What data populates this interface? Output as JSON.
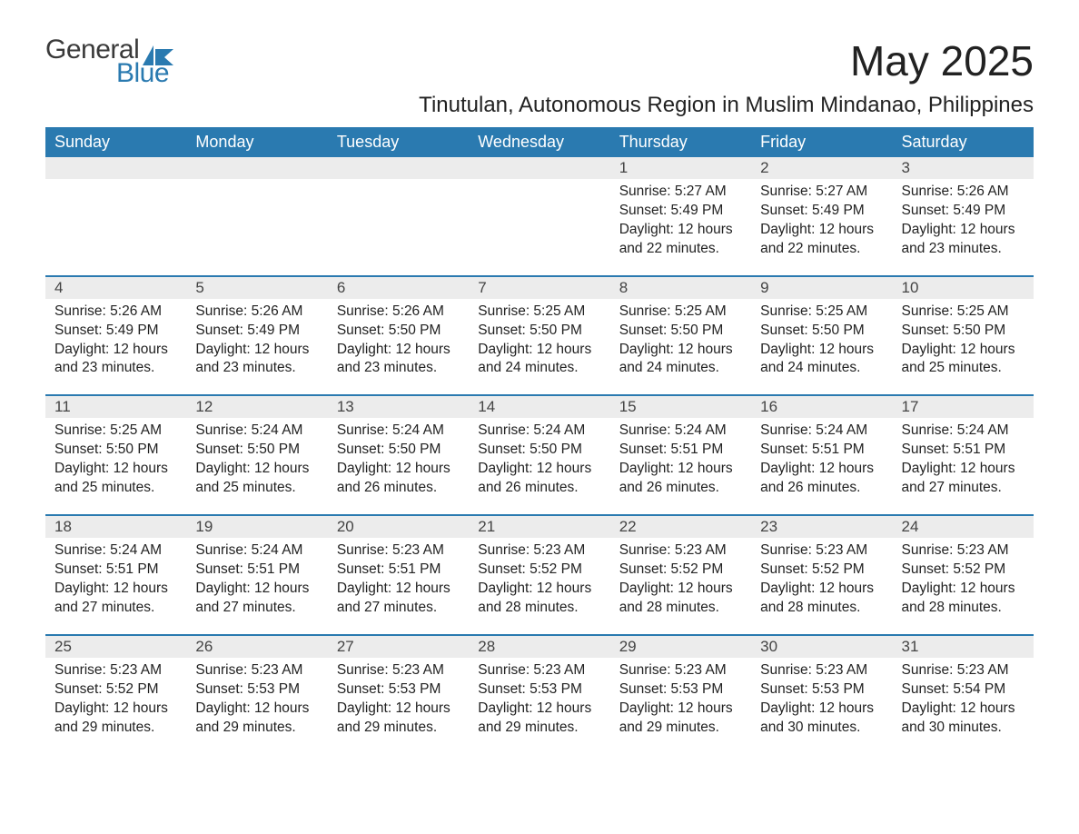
{
  "brand": {
    "general": "General",
    "blue": "Blue",
    "icon_color": "#2a7ab0"
  },
  "title": "May 2025",
  "subtitle": "Tinutulan, Autonomous Region in Muslim Mindanao, Philippines",
  "header_bg": "#2a7ab0",
  "header_fg": "#ffffff",
  "daynum_bg": "#ececec",
  "rule_color": "#2a7ab0",
  "text_color": "#222222",
  "days_of_week": [
    "Sunday",
    "Monday",
    "Tuesday",
    "Wednesday",
    "Thursday",
    "Friday",
    "Saturday"
  ],
  "weeks": [
    {
      "cells": [
        null,
        null,
        null,
        null,
        {
          "n": "1",
          "sr": "5:27 AM",
          "ss": "5:49 PM",
          "dl": "12 hours and 22 minutes."
        },
        {
          "n": "2",
          "sr": "5:27 AM",
          "ss": "5:49 PM",
          "dl": "12 hours and 22 minutes."
        },
        {
          "n": "3",
          "sr": "5:26 AM",
          "ss": "5:49 PM",
          "dl": "12 hours and 23 minutes."
        }
      ]
    },
    {
      "cells": [
        {
          "n": "4",
          "sr": "5:26 AM",
          "ss": "5:49 PM",
          "dl": "12 hours and 23 minutes."
        },
        {
          "n": "5",
          "sr": "5:26 AM",
          "ss": "5:49 PM",
          "dl": "12 hours and 23 minutes."
        },
        {
          "n": "6",
          "sr": "5:26 AM",
          "ss": "5:50 PM",
          "dl": "12 hours and 23 minutes."
        },
        {
          "n": "7",
          "sr": "5:25 AM",
          "ss": "5:50 PM",
          "dl": "12 hours and 24 minutes."
        },
        {
          "n": "8",
          "sr": "5:25 AM",
          "ss": "5:50 PM",
          "dl": "12 hours and 24 minutes."
        },
        {
          "n": "9",
          "sr": "5:25 AM",
          "ss": "5:50 PM",
          "dl": "12 hours and 24 minutes."
        },
        {
          "n": "10",
          "sr": "5:25 AM",
          "ss": "5:50 PM",
          "dl": "12 hours and 25 minutes."
        }
      ]
    },
    {
      "cells": [
        {
          "n": "11",
          "sr": "5:25 AM",
          "ss": "5:50 PM",
          "dl": "12 hours and 25 minutes."
        },
        {
          "n": "12",
          "sr": "5:24 AM",
          "ss": "5:50 PM",
          "dl": "12 hours and 25 minutes."
        },
        {
          "n": "13",
          "sr": "5:24 AM",
          "ss": "5:50 PM",
          "dl": "12 hours and 26 minutes."
        },
        {
          "n": "14",
          "sr": "5:24 AM",
          "ss": "5:50 PM",
          "dl": "12 hours and 26 minutes."
        },
        {
          "n": "15",
          "sr": "5:24 AM",
          "ss": "5:51 PM",
          "dl": "12 hours and 26 minutes."
        },
        {
          "n": "16",
          "sr": "5:24 AM",
          "ss": "5:51 PM",
          "dl": "12 hours and 26 minutes."
        },
        {
          "n": "17",
          "sr": "5:24 AM",
          "ss": "5:51 PM",
          "dl": "12 hours and 27 minutes."
        }
      ]
    },
    {
      "cells": [
        {
          "n": "18",
          "sr": "5:24 AM",
          "ss": "5:51 PM",
          "dl": "12 hours and 27 minutes."
        },
        {
          "n": "19",
          "sr": "5:24 AM",
          "ss": "5:51 PM",
          "dl": "12 hours and 27 minutes."
        },
        {
          "n": "20",
          "sr": "5:23 AM",
          "ss": "5:51 PM",
          "dl": "12 hours and 27 minutes."
        },
        {
          "n": "21",
          "sr": "5:23 AM",
          "ss": "5:52 PM",
          "dl": "12 hours and 28 minutes."
        },
        {
          "n": "22",
          "sr": "5:23 AM",
          "ss": "5:52 PM",
          "dl": "12 hours and 28 minutes."
        },
        {
          "n": "23",
          "sr": "5:23 AM",
          "ss": "5:52 PM",
          "dl": "12 hours and 28 minutes."
        },
        {
          "n": "24",
          "sr": "5:23 AM",
          "ss": "5:52 PM",
          "dl": "12 hours and 28 minutes."
        }
      ]
    },
    {
      "cells": [
        {
          "n": "25",
          "sr": "5:23 AM",
          "ss": "5:52 PM",
          "dl": "12 hours and 29 minutes."
        },
        {
          "n": "26",
          "sr": "5:23 AM",
          "ss": "5:53 PM",
          "dl": "12 hours and 29 minutes."
        },
        {
          "n": "27",
          "sr": "5:23 AM",
          "ss": "5:53 PM",
          "dl": "12 hours and 29 minutes."
        },
        {
          "n": "28",
          "sr": "5:23 AM",
          "ss": "5:53 PM",
          "dl": "12 hours and 29 minutes."
        },
        {
          "n": "29",
          "sr": "5:23 AM",
          "ss": "5:53 PM",
          "dl": "12 hours and 29 minutes."
        },
        {
          "n": "30",
          "sr": "5:23 AM",
          "ss": "5:53 PM",
          "dl": "12 hours and 30 minutes."
        },
        {
          "n": "31",
          "sr": "5:23 AM",
          "ss": "5:54 PM",
          "dl": "12 hours and 30 minutes."
        }
      ]
    }
  ],
  "labels": {
    "sunrise": "Sunrise:",
    "sunset": "Sunset:",
    "daylight": "Daylight:"
  }
}
